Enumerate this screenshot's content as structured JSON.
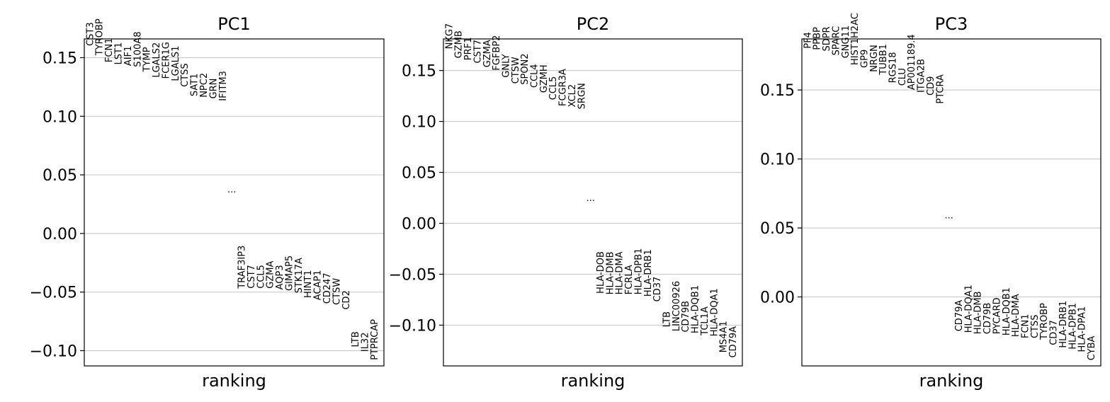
{
  "chart_data": [
    {
      "type": "scatter",
      "title": "PC1",
      "xlabel": "ranking",
      "ylim": [
        -0.113,
        0.166
      ],
      "yticks": [
        "0.15",
        "0.10",
        "0.05",
        "0.00",
        "−0.05",
        "−0.10"
      ],
      "ytick_values": [
        0.15,
        0.1,
        0.05,
        0.0,
        -0.05,
        -0.1
      ],
      "grid": true,
      "ellipsis": "...",
      "ellipsis_value": 0.035,
      "top_genes": [
        {
          "name": "CST3",
          "value": 0.16
        },
        {
          "name": "TYROBP",
          "value": 0.152
        },
        {
          "name": "FCN1",
          "value": 0.146
        },
        {
          "name": "LST1",
          "value": 0.144
        },
        {
          "name": "AIF1",
          "value": 0.143
        },
        {
          "name": "S100A8",
          "value": 0.142
        },
        {
          "name": "TYMP",
          "value": 0.138
        },
        {
          "name": "LGALS2",
          "value": 0.133
        },
        {
          "name": "FCER1G",
          "value": 0.132
        },
        {
          "name": "LGALS1",
          "value": 0.13
        },
        {
          "name": "CTSS",
          "value": 0.125
        },
        {
          "name": "SAT1",
          "value": 0.117
        },
        {
          "name": "NPC2",
          "value": 0.116
        },
        {
          "name": "GRN",
          "value": 0.115
        },
        {
          "name": "IFITM3",
          "value": 0.113
        }
      ],
      "bottom_genes": [
        {
          "name": "TRAF3IP3",
          "value": -0.047
        },
        {
          "name": "CST7",
          "value": -0.047
        },
        {
          "name": "CCL5",
          "value": -0.047
        },
        {
          "name": "GZMA",
          "value": -0.047
        },
        {
          "name": "AQP3",
          "value": -0.048
        },
        {
          "name": "GIMAP5",
          "value": -0.049
        },
        {
          "name": "STK17A",
          "value": -0.051
        },
        {
          "name": "HINT1",
          "value": -0.055
        },
        {
          "name": "ACAP1",
          "value": -0.057
        },
        {
          "name": "CD247",
          "value": -0.06
        },
        {
          "name": "CTSW",
          "value": -0.061
        },
        {
          "name": "CD2",
          "value": -0.065
        },
        {
          "name": "LTB",
          "value": -0.097
        },
        {
          "name": "IL32",
          "value": -0.101
        },
        {
          "name": "PTPRCAP",
          "value": -0.108
        }
      ]
    },
    {
      "type": "scatter",
      "title": "PC2",
      "xlabel": "ranking",
      "ylim": [
        -0.14,
        0.181
      ],
      "yticks": [
        "0.15",
        "0.10",
        "0.05",
        "0.00",
        "−0.05",
        "−0.10"
      ],
      "ytick_values": [
        0.15,
        0.1,
        0.05,
        0.0,
        -0.05,
        -0.1
      ],
      "grid": true,
      "ellipsis": "...",
      "ellipsis_value": 0.022,
      "top_genes": [
        {
          "name": "NKG7",
          "value": 0.171
        },
        {
          "name": "GZMB",
          "value": 0.162
        },
        {
          "name": "PRF1",
          "value": 0.16
        },
        {
          "name": "CST7",
          "value": 0.157
        },
        {
          "name": "GZMA",
          "value": 0.153
        },
        {
          "name": "FGFBP2",
          "value": 0.15
        },
        {
          "name": "GNLY",
          "value": 0.143
        },
        {
          "name": "CTSW",
          "value": 0.137
        },
        {
          "name": "SPON2",
          "value": 0.136
        },
        {
          "name": "CCL4",
          "value": 0.133
        },
        {
          "name": "GZMH",
          "value": 0.128
        },
        {
          "name": "CCL5",
          "value": 0.121
        },
        {
          "name": "FCGR3A",
          "value": 0.115
        },
        {
          "name": "XCL2",
          "value": 0.114
        },
        {
          "name": "SRGN",
          "value": 0.112
        }
      ],
      "bottom_genes": [
        {
          "name": "HLA-DOB",
          "value": -0.069
        },
        {
          "name": "HLA-DMB",
          "value": -0.07
        },
        {
          "name": "HLA-DMA",
          "value": -0.07
        },
        {
          "name": "FCRLA",
          "value": -0.07
        },
        {
          "name": "HLA-DPB1",
          "value": -0.07
        },
        {
          "name": "HLA-DRB1",
          "value": -0.072
        },
        {
          "name": "CD37",
          "value": -0.077
        },
        {
          "name": "LTB",
          "value": -0.102
        },
        {
          "name": "LINC00926",
          "value": -0.106
        },
        {
          "name": "CD79B",
          "value": -0.107
        },
        {
          "name": "HLA-DQB1",
          "value": -0.108
        },
        {
          "name": "TCL1A",
          "value": -0.11
        },
        {
          "name": "HLA-DQA1",
          "value": -0.111
        },
        {
          "name": "MS4A1",
          "value": -0.127
        },
        {
          "name": "CD79A",
          "value": -0.132
        }
      ]
    },
    {
      "type": "scatter",
      "title": "PC3",
      "xlabel": "ranking",
      "ylim": [
        -0.05,
        0.187
      ],
      "yticks": [
        "0.15",
        "0.10",
        "0.05",
        "0.00"
      ],
      "ytick_values": [
        0.15,
        0.1,
        0.05,
        0.0
      ],
      "grid": true,
      "ellipsis": "...",
      "ellipsis_value": 0.057,
      "top_genes": [
        {
          "name": "PF4",
          "value": 0.18
        },
        {
          "name": "PPBP",
          "value": 0.179
        },
        {
          "name": "SDPR",
          "value": 0.178
        },
        {
          "name": "SPARC",
          "value": 0.175
        },
        {
          "name": "GNG11",
          "value": 0.173
        },
        {
          "name": "HIST1H2AC",
          "value": 0.168
        },
        {
          "name": "GP9",
          "value": 0.166
        },
        {
          "name": "NRGN",
          "value": 0.163
        },
        {
          "name": "TUBB1",
          "value": 0.161
        },
        {
          "name": "RGS18",
          "value": 0.155
        },
        {
          "name": "CLU",
          "value": 0.153
        },
        {
          "name": "AP001189.4",
          "value": 0.15
        },
        {
          "name": "ITGA2B",
          "value": 0.148
        },
        {
          "name": "CD9",
          "value": 0.146
        },
        {
          "name": "PTCRA",
          "value": 0.14
        }
      ],
      "bottom_genes": [
        {
          "name": "CD79A",
          "value": -0.025
        },
        {
          "name": "HLA-DQA1",
          "value": -0.026
        },
        {
          "name": "HLA-DMB",
          "value": -0.027
        },
        {
          "name": "CD79B",
          "value": -0.027
        },
        {
          "name": "PYCARD",
          "value": -0.027
        },
        {
          "name": "HLA-DQB1",
          "value": -0.028
        },
        {
          "name": "HLA-DMA",
          "value": -0.029
        },
        {
          "name": "FCN1",
          "value": -0.03
        },
        {
          "name": "CTSS",
          "value": -0.03
        },
        {
          "name": "TYROBP",
          "value": -0.031
        },
        {
          "name": "CD37",
          "value": -0.035
        },
        {
          "name": "HLA-DRB1",
          "value": -0.037
        },
        {
          "name": "HLA-DPB1",
          "value": -0.038
        },
        {
          "name": "HLA-DPA1",
          "value": -0.04
        },
        {
          "name": "CYBA",
          "value": -0.046
        }
      ]
    }
  ]
}
